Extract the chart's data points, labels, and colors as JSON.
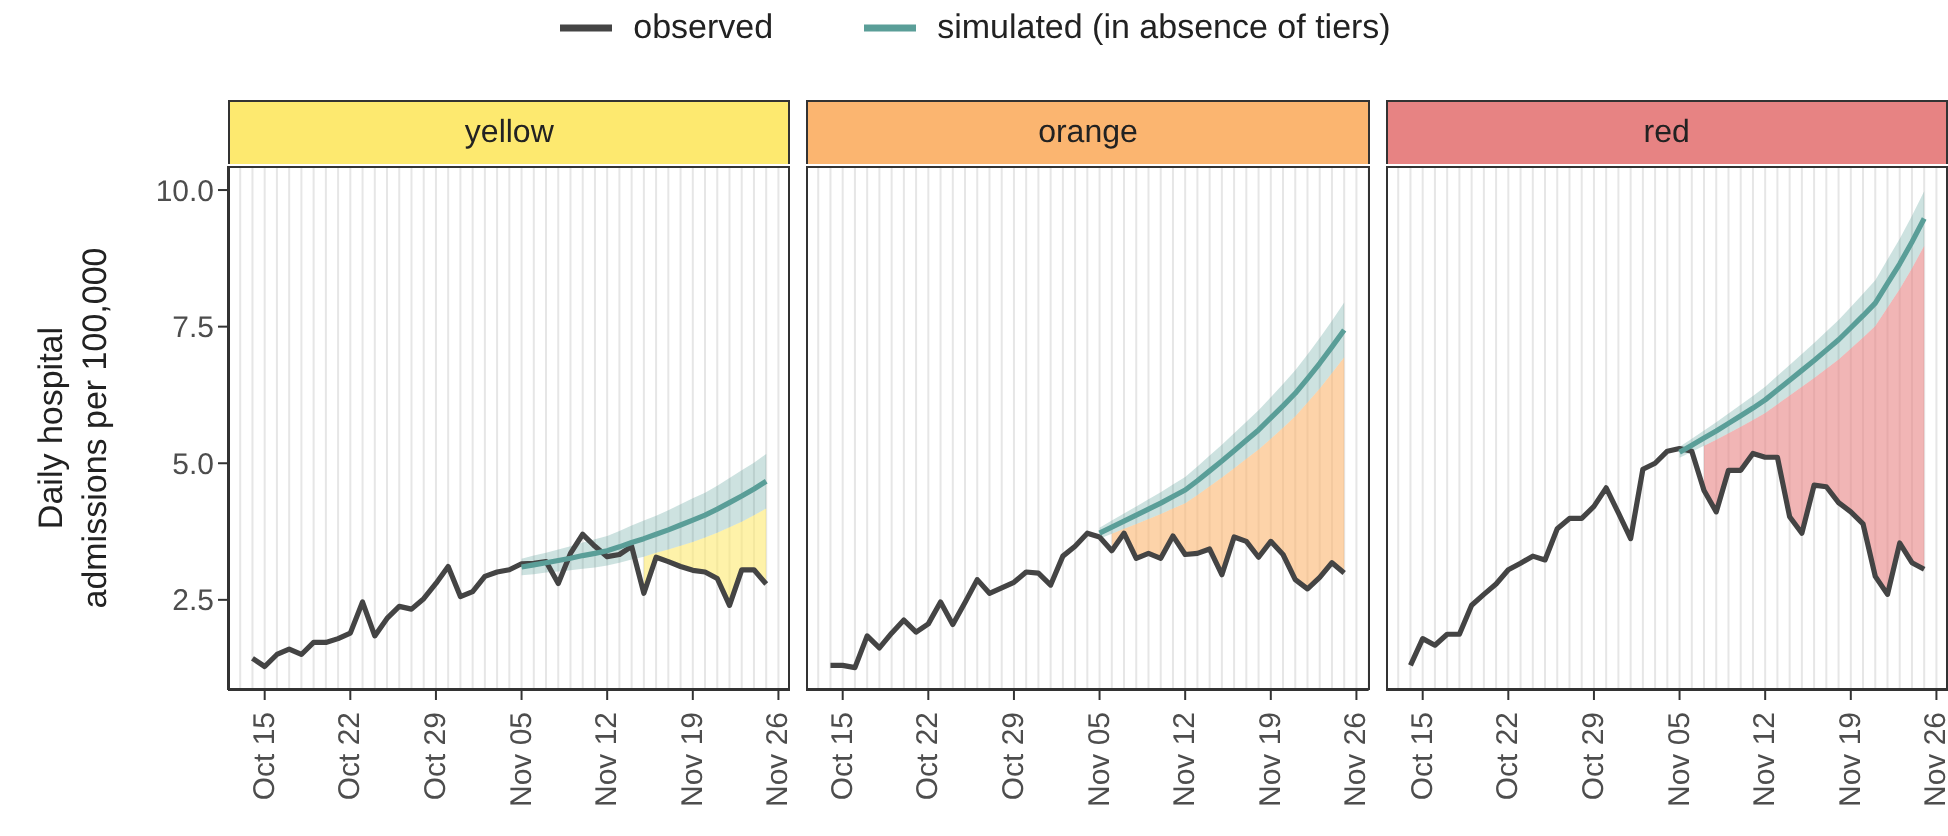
{
  "chart_data": [
    {
      "type": "line",
      "title": "yellow",
      "ylabel": "Daily hospital admissions per 100,000",
      "legend": "top",
      "grid": "x",
      "marker": "none",
      "line_style": "solid",
      "x": [
        "--10-14",
        "--10-15",
        "--10-16",
        "--10-17",
        "--10-18",
        "--10-19",
        "--10-20",
        "--10-21",
        "--10-22",
        "--10-23",
        "--10-24",
        "--10-25",
        "--10-26",
        "--10-27",
        "--10-28",
        "--10-29",
        "--10-30",
        "--10-31",
        "--11-01",
        "--11-02",
        "--11-03",
        "--11-04",
        "--11-05",
        "--11-06",
        "--11-07",
        "--11-08",
        "--11-09",
        "--11-10",
        "--11-11",
        "--11-12",
        "--11-13",
        "--11-14",
        "--11-15",
        "--11-16",
        "--11-17",
        "--11-18",
        "--11-19",
        "--11-20",
        "--11-21",
        "--11-22",
        "--11-23",
        "--11-24",
        "--11-25"
      ],
      "xlim": [
        "--10-12",
        "--11-27"
      ],
      "xticks": [
        {
          "value": "--10-15",
          "label": "Oct 15"
        },
        {
          "value": "--10-22",
          "label": "Oct 22"
        },
        {
          "value": "--10-29",
          "label": "Oct 29"
        },
        {
          "value": "--11-05",
          "label": "Nov 05"
        },
        {
          "value": "--11-12",
          "label": "Nov 12"
        },
        {
          "value": "--11-19",
          "label": "Nov 19"
        },
        {
          "value": "--11-26",
          "label": "Nov 26"
        }
      ],
      "ylim": [
        0.85,
        10.44
      ],
      "yticks": [
        2.5,
        {
          "value": 5,
          "label": "5.0"
        },
        7.5,
        {
          "value": 10,
          "label": "10.0"
        }
      ],
      "series": [
        {
          "name": "observed",
          "color": "#444444",
          "values": [
            1.43,
            1.28,
            1.5,
            1.6,
            1.5,
            1.72,
            1.72,
            1.79,
            1.89,
            2.46,
            1.84,
            2.16,
            2.38,
            2.33,
            2.52,
            2.8,
            3.11,
            2.56,
            2.65,
            2.93,
            3.01,
            3.05,
            3.16,
            3.17,
            3.2,
            2.8,
            3.35,
            3.7,
            3.48,
            3.29,
            3.33,
            3.48,
            2.62,
            3.28,
            3.2,
            3.11,
            3.04,
            3.01,
            2.89,
            2.4,
            3.05,
            3.05,
            2.79
          ]
        },
        {
          "name": "simulated (in absence of tiers)",
          "color": "#5a9e98",
          "values": [
            null,
            null,
            null,
            null,
            null,
            null,
            null,
            null,
            null,
            null,
            null,
            null,
            null,
            null,
            null,
            null,
            null,
            null,
            null,
            null,
            null,
            null,
            3.1,
            3.14,
            3.18,
            3.22,
            3.26,
            3.31,
            3.35,
            3.4,
            3.47,
            3.55,
            3.62,
            3.7,
            3.78,
            3.87,
            3.96,
            4.05,
            4.16,
            4.28,
            4.4,
            4.53,
            4.67
          ],
          "lower": [
            null,
            null,
            null,
            null,
            null,
            null,
            null,
            null,
            null,
            null,
            null,
            null,
            null,
            null,
            null,
            null,
            null,
            null,
            null,
            null,
            null,
            null,
            2.95,
            2.97,
            3.0,
            3.02,
            3.04,
            3.07,
            3.09,
            3.13,
            3.18,
            3.24,
            3.29,
            3.36,
            3.42,
            3.49,
            3.56,
            3.64,
            3.73,
            3.83,
            3.93,
            4.05,
            4.17
          ],
          "upper": [
            null,
            null,
            null,
            null,
            null,
            null,
            null,
            null,
            null,
            null,
            null,
            null,
            null,
            null,
            null,
            null,
            null,
            null,
            null,
            null,
            null,
            null,
            3.25,
            3.31,
            3.36,
            3.42,
            3.48,
            3.55,
            3.61,
            3.67,
            3.76,
            3.86,
            3.95,
            4.04,
            4.14,
            4.25,
            4.36,
            4.46,
            4.59,
            4.73,
            4.87,
            5.01,
            5.17
          ]
        },
        {
          "type": "area",
          "color": "#fde96f",
          "values": [
            null,
            null,
            null,
            null,
            null,
            null,
            null,
            null,
            null,
            null,
            null,
            null,
            null,
            null,
            null,
            null,
            null,
            null,
            null,
            null,
            null,
            null,
            null,
            null,
            null,
            null,
            null,
            null,
            null,
            null,
            null,
            null,
            3.29,
            3.36,
            3.42,
            3.49,
            3.56,
            3.64,
            3.73,
            3.83,
            3.93,
            4.05,
            4.17
          ]
        }
      ]
    },
    {
      "type": "line",
      "title": "orange",
      "grid": "x",
      "marker": "none",
      "line_style": "solid",
      "tick_labels": "x",
      "x": [
        "--10-14",
        "--10-15",
        "--10-16",
        "--10-17",
        "--10-18",
        "--10-19",
        "--10-20",
        "--10-21",
        "--10-22",
        "--10-23",
        "--10-24",
        "--10-25",
        "--10-26",
        "--10-27",
        "--10-28",
        "--10-29",
        "--10-30",
        "--10-31",
        "--11-01",
        "--11-02",
        "--11-03",
        "--11-04",
        "--11-05",
        "--11-06",
        "--11-07",
        "--11-08",
        "--11-09",
        "--11-10",
        "--11-11",
        "--11-12",
        "--11-13",
        "--11-14",
        "--11-15",
        "--11-16",
        "--11-17",
        "--11-18",
        "--11-19",
        "--11-20",
        "--11-21",
        "--11-22",
        "--11-23",
        "--11-24",
        "--11-25"
      ],
      "xlim": [
        "--10-12",
        "--11-27"
      ],
      "xticks": [
        {
          "value": "--10-15",
          "label": "Oct 15"
        },
        {
          "value": "--10-22",
          "label": "Oct 22"
        },
        {
          "value": "--10-29",
          "label": "Oct 29"
        },
        {
          "value": "--11-05",
          "label": "Nov 05"
        },
        {
          "value": "--11-12",
          "label": "Nov 12"
        },
        {
          "value": "--11-19",
          "label": "Nov 19"
        },
        {
          "value": "--11-26",
          "label": "Nov 26"
        }
      ],
      "ylim": [
        0.85,
        10.44
      ],
      "series": [
        {
          "color": "#444444",
          "values": [
            1.3,
            1.3,
            1.26,
            1.84,
            1.62,
            1.89,
            2.13,
            1.91,
            2.06,
            2.46,
            2.05,
            2.45,
            2.87,
            2.62,
            2.72,
            2.82,
            3.01,
            2.99,
            2.77,
            3.3,
            3.48,
            3.72,
            3.65,
            3.4,
            3.72,
            3.26,
            3.35,
            3.26,
            3.67,
            3.33,
            3.35,
            3.43,
            2.96,
            3.65,
            3.57,
            3.28,
            3.57,
            3.33,
            2.87,
            2.7,
            2.91,
            3.18,
            2.99
          ]
        },
        {
          "color": "#5a9e98",
          "values": [
            null,
            null,
            null,
            null,
            null,
            null,
            null,
            null,
            null,
            null,
            null,
            null,
            null,
            null,
            null,
            null,
            null,
            null,
            null,
            null,
            null,
            null,
            3.72,
            3.83,
            3.94,
            4.05,
            4.16,
            4.27,
            4.39,
            4.51,
            4.68,
            4.86,
            5.04,
            5.23,
            5.42,
            5.61,
            5.83,
            6.05,
            6.28,
            6.55,
            6.83,
            7.13,
            7.44
          ],
          "lower": [
            null,
            null,
            null,
            null,
            null,
            null,
            null,
            null,
            null,
            null,
            null,
            null,
            null,
            null,
            null,
            null,
            null,
            null,
            null,
            null,
            null,
            null,
            3.62,
            3.71,
            3.8,
            3.89,
            3.98,
            4.07,
            4.17,
            4.27,
            4.42,
            4.58,
            4.74,
            4.91,
            5.08,
            5.25,
            5.45,
            5.65,
            5.86,
            6.11,
            6.37,
            6.65,
            6.94
          ],
          "upper": [
            null,
            null,
            null,
            null,
            null,
            null,
            null,
            null,
            null,
            null,
            null,
            null,
            null,
            null,
            null,
            null,
            null,
            null,
            null,
            null,
            null,
            null,
            3.82,
            3.95,
            4.08,
            4.21,
            4.34,
            4.47,
            4.61,
            4.75,
            4.94,
            5.14,
            5.34,
            5.55,
            5.76,
            5.97,
            6.21,
            6.45,
            6.7,
            6.99,
            7.29,
            7.61,
            7.94
          ]
        },
        {
          "type": "area",
          "color": "#fbb570",
          "values": [
            null,
            null,
            null,
            null,
            null,
            null,
            null,
            null,
            null,
            null,
            null,
            null,
            null,
            null,
            null,
            null,
            null,
            null,
            null,
            null,
            null,
            null,
            null,
            3.71,
            3.8,
            3.89,
            3.98,
            4.07,
            4.17,
            4.27,
            4.42,
            4.58,
            4.74,
            4.91,
            5.08,
            5.25,
            5.45,
            5.65,
            5.86,
            6.11,
            6.37,
            6.65,
            6.94
          ]
        }
      ]
    },
    {
      "type": "line",
      "title": "red",
      "grid": "x",
      "marker": "none",
      "line_style": "solid",
      "tick_labels": "x",
      "x": [
        "--10-14",
        "--10-15",
        "--10-16",
        "--10-17",
        "--10-18",
        "--10-19",
        "--10-20",
        "--10-21",
        "--10-22",
        "--10-23",
        "--10-24",
        "--10-25",
        "--10-26",
        "--10-27",
        "--10-28",
        "--10-29",
        "--10-30",
        "--10-31",
        "--11-01",
        "--11-02",
        "--11-03",
        "--11-04",
        "--11-05",
        "--11-06",
        "--11-07",
        "--11-08",
        "--11-09",
        "--11-10",
        "--11-11",
        "--11-12",
        "--11-13",
        "--11-14",
        "--11-15",
        "--11-16",
        "--11-17",
        "--11-18",
        "--11-19",
        "--11-20",
        "--11-21",
        "--11-22",
        "--11-23",
        "--11-24",
        "--11-25"
      ],
      "xlim": [
        "--10-12",
        "--11-27"
      ],
      "xticks": [
        {
          "value": "--10-15",
          "label": "Oct 15"
        },
        {
          "value": "--10-22",
          "label": "Oct 22"
        },
        {
          "value": "--10-29",
          "label": "Oct 29"
        },
        {
          "value": "--11-05",
          "label": "Nov 05"
        },
        {
          "value": "--11-12",
          "label": "Nov 12"
        },
        {
          "value": "--11-19",
          "label": "Nov 19"
        },
        {
          "value": "--11-26",
          "label": "Nov 26"
        }
      ],
      "ylim": [
        0.85,
        10.44
      ],
      "series": [
        {
          "color": "#444444",
          "values": [
            1.3,
            1.79,
            1.67,
            1.87,
            1.87,
            2.4,
            2.6,
            2.79,
            3.05,
            3.17,
            3.3,
            3.23,
            3.8,
            3.99,
            3.99,
            4.21,
            4.55,
            4.09,
            3.62,
            4.89,
            5.0,
            5.22,
            5.27,
            5.22,
            4.5,
            4.11,
            4.87,
            4.87,
            5.18,
            5.11,
            5.11,
            4.02,
            3.72,
            4.6,
            4.57,
            4.28,
            4.11,
            3.89,
            2.93,
            2.6,
            3.54,
            3.18,
            3.06
          ]
        },
        {
          "color": "#5a9e98",
          "values": [
            null,
            null,
            null,
            null,
            null,
            null,
            null,
            null,
            null,
            null,
            null,
            null,
            null,
            null,
            null,
            null,
            null,
            null,
            null,
            null,
            null,
            null,
            5.2,
            5.33,
            5.46,
            5.59,
            5.73,
            5.87,
            6.01,
            6.16,
            6.34,
            6.52,
            6.7,
            6.88,
            7.07,
            7.26,
            7.48,
            7.7,
            7.93,
            8.29,
            8.65,
            9.05,
            9.48
          ],
          "lower": [
            null,
            null,
            null,
            null,
            null,
            null,
            null,
            null,
            null,
            null,
            null,
            null,
            null,
            null,
            null,
            null,
            null,
            null,
            null,
            null,
            null,
            null,
            5.1,
            5.21,
            5.32,
            5.43,
            5.55,
            5.67,
            5.79,
            5.92,
            6.08,
            6.24,
            6.4,
            6.56,
            6.73,
            6.9,
            7.1,
            7.3,
            7.51,
            7.85,
            8.19,
            8.57,
            8.98
          ],
          "upper": [
            null,
            null,
            null,
            null,
            null,
            null,
            null,
            null,
            null,
            null,
            null,
            null,
            null,
            null,
            null,
            null,
            null,
            null,
            null,
            null,
            null,
            null,
            5.3,
            5.45,
            5.6,
            5.75,
            5.91,
            6.07,
            6.23,
            6.4,
            6.6,
            6.8,
            7.0,
            7.2,
            7.41,
            7.62,
            7.86,
            8.1,
            8.35,
            8.73,
            9.11,
            9.53,
            9.98
          ]
        },
        {
          "type": "area",
          "color": "#e78383",
          "values": [
            null,
            null,
            null,
            null,
            null,
            null,
            null,
            null,
            null,
            null,
            null,
            null,
            null,
            null,
            null,
            null,
            null,
            null,
            null,
            null,
            null,
            null,
            null,
            null,
            5.32,
            5.43,
            5.55,
            5.67,
            5.79,
            5.92,
            6.08,
            6.24,
            6.4,
            6.56,
            6.73,
            6.9,
            7.1,
            7.3,
            7.51,
            7.85,
            8.19,
            8.57,
            8.98
          ]
        }
      ]
    }
  ]
}
